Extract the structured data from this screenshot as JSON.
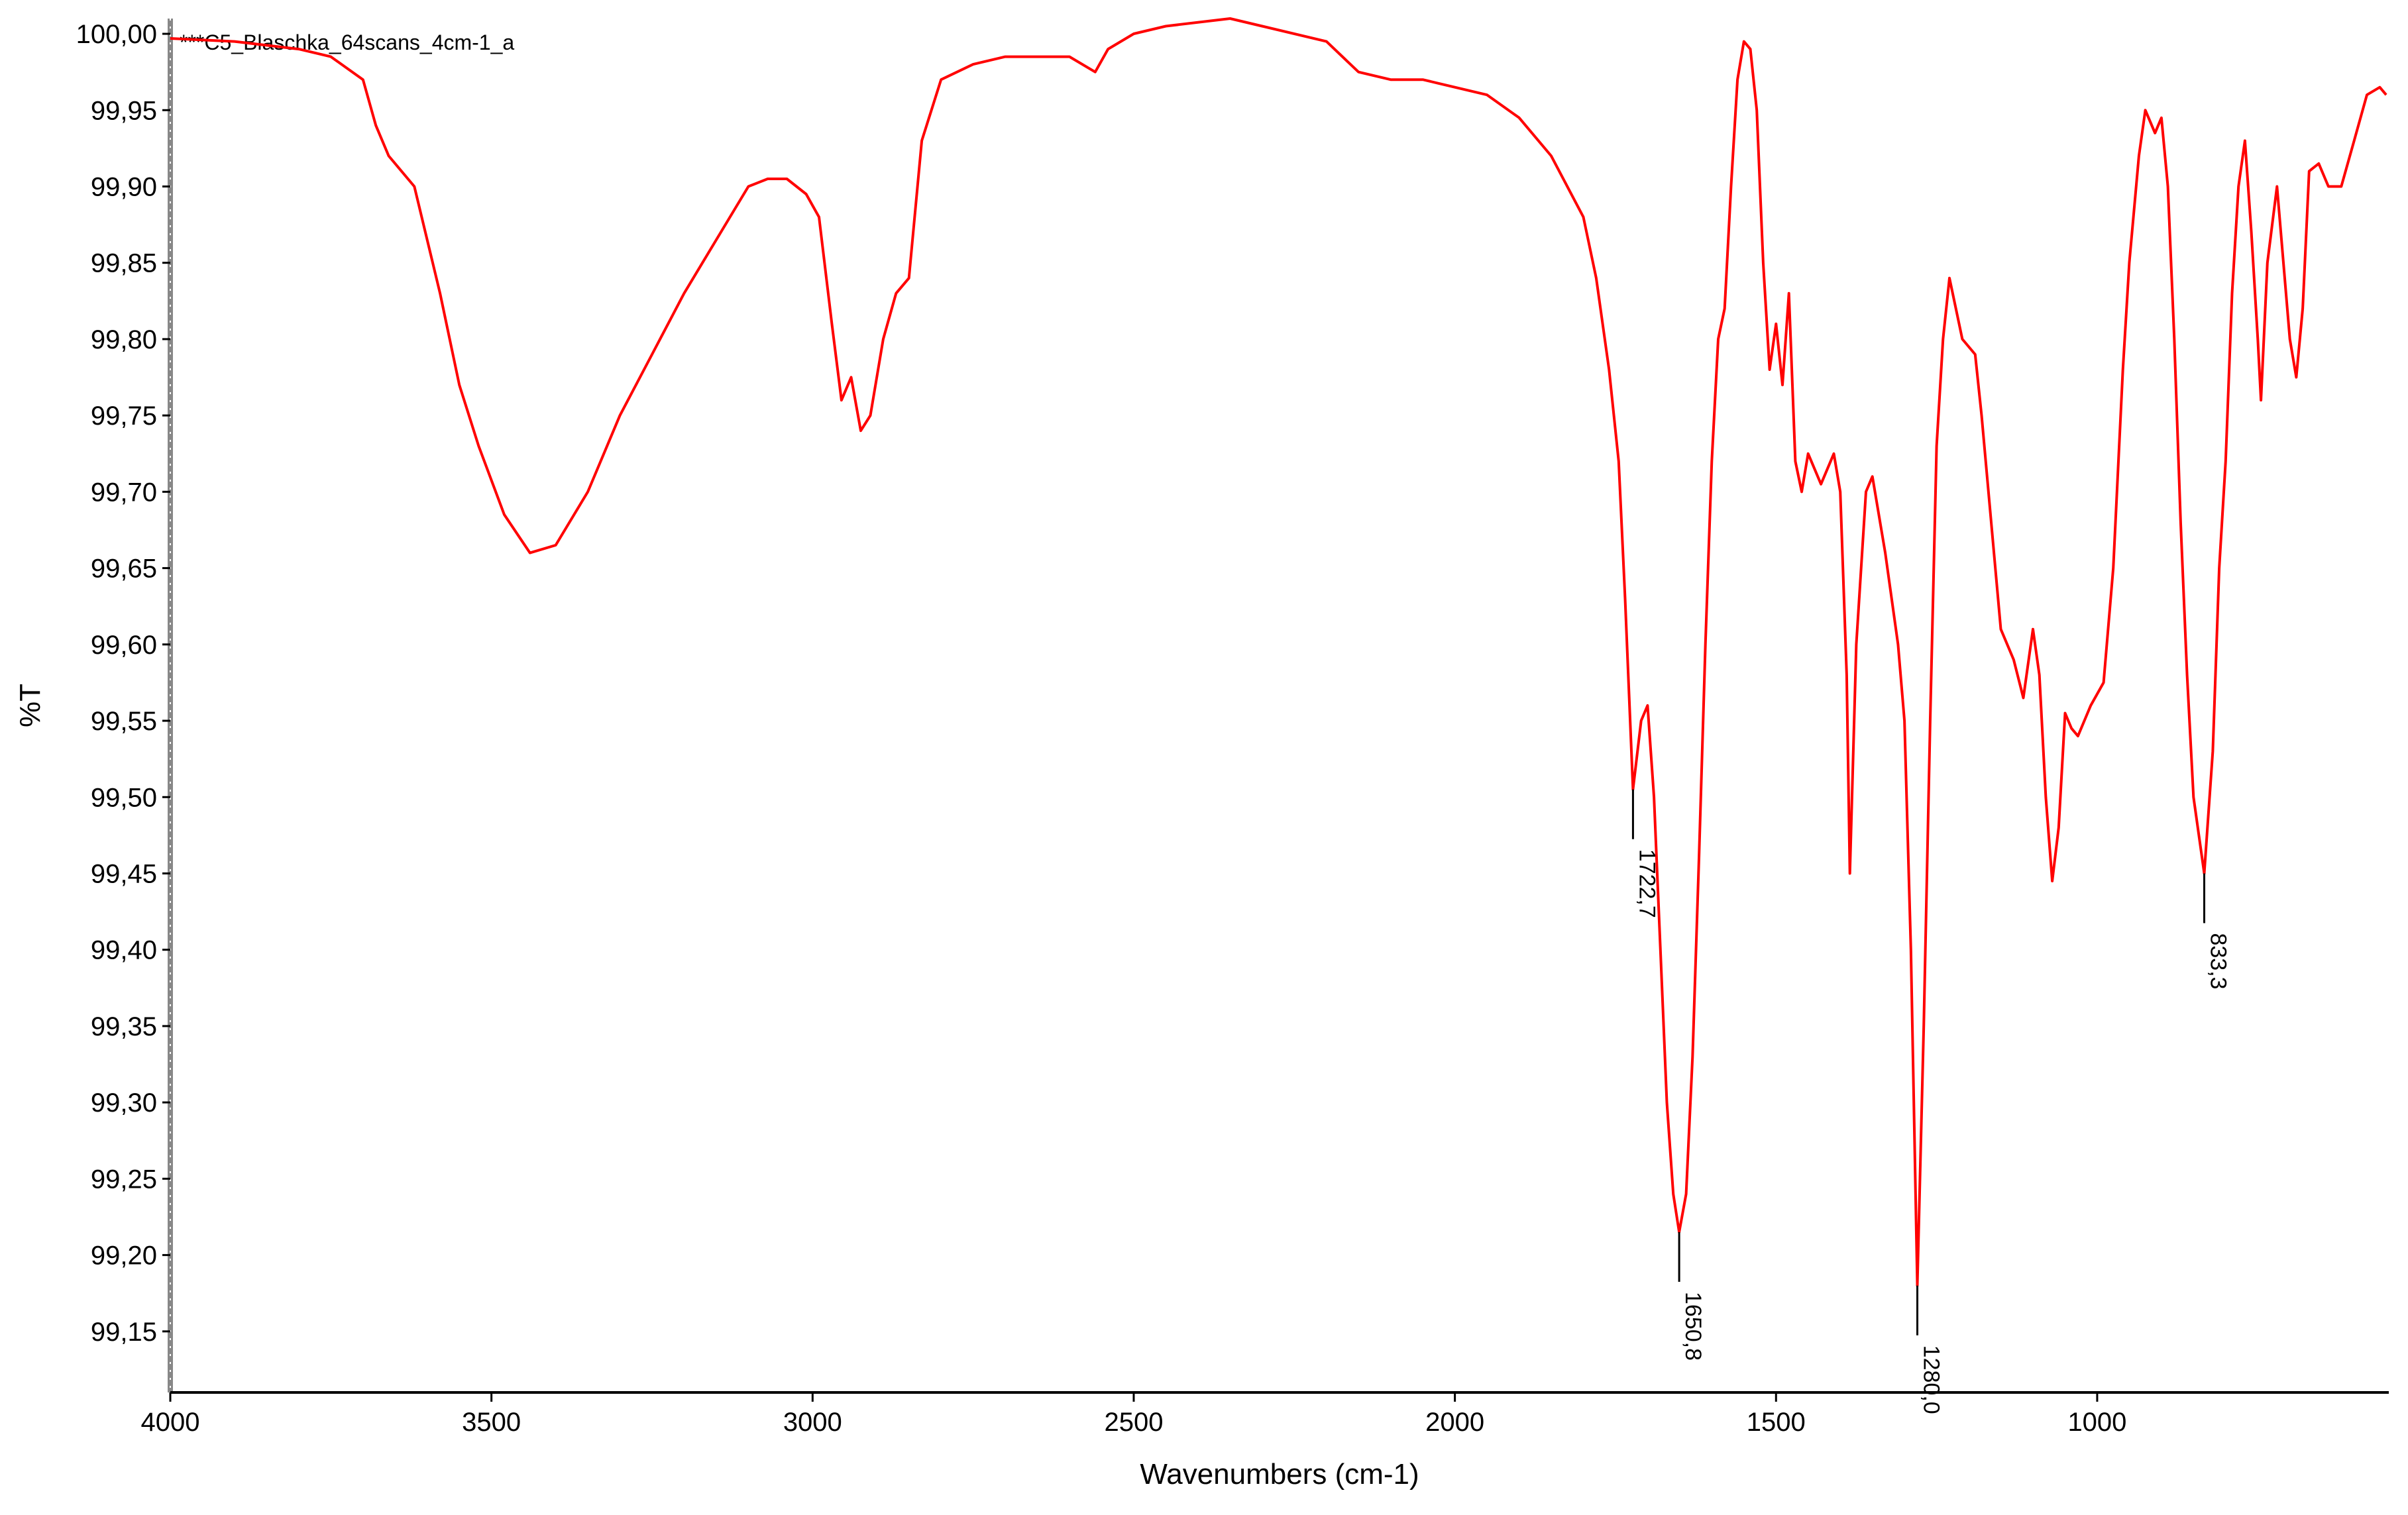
{
  "chart_data": {
    "type": "line",
    "series_label": "***C5_Blaschka_64scans_4cm-1_a",
    "x_label": "Wavenumbers (cm-1)",
    "y_label": "%T",
    "xlim": [
      4000,
      546
    ],
    "ylim": [
      99.11,
      100.01
    ],
    "xticks": [
      4000,
      3500,
      3000,
      2500,
      2000,
      1500,
      1000
    ],
    "yticks": [
      {
        "value": 100.0,
        "label": "100,00"
      },
      {
        "value": 99.95,
        "label": "99,95"
      },
      {
        "value": 99.9,
        "label": "99,90"
      },
      {
        "value": 99.85,
        "label": "99,85"
      },
      {
        "value": 99.8,
        "label": "99,80"
      },
      {
        "value": 99.75,
        "label": "99,75"
      },
      {
        "value": 99.7,
        "label": "99,70"
      },
      {
        "value": 99.65,
        "label": "99,65"
      },
      {
        "value": 99.6,
        "label": "99,60"
      },
      {
        "value": 99.55,
        "label": "99,55"
      },
      {
        "value": 99.5,
        "label": "99,50"
      },
      {
        "value": 99.45,
        "label": "99,45"
      },
      {
        "value": 99.4,
        "label": "99,40"
      },
      {
        "value": 99.35,
        "label": "99,35"
      },
      {
        "value": 99.3,
        "label": "99,30"
      },
      {
        "value": 99.25,
        "label": "99,25"
      },
      {
        "value": 99.2,
        "label": "99,20"
      },
      {
        "value": 99.15,
        "label": "99,15"
      }
    ],
    "color": "#ff0000",
    "x": [
      4000,
      3900,
      3800,
      3750,
      3700,
      3680,
      3660,
      3620,
      3580,
      3550,
      3520,
      3480,
      3440,
      3400,
      3350,
      3300,
      3250,
      3200,
      3150,
      3100,
      3070,
      3040,
      3010,
      2990,
      2970,
      2955,
      2940,
      2925,
      2910,
      2890,
      2870,
      2850,
      2830,
      2800,
      2750,
      2700,
      2600,
      2560,
      2540,
      2500,
      2450,
      2350,
      2300,
      2200,
      2150,
      2100,
      2050,
      2000,
      1950,
      1900,
      1850,
      1800,
      1780,
      1760,
      1745,
      1735,
      1722.7,
      1710,
      1700,
      1690,
      1680,
      1670,
      1660,
      1650.8,
      1640,
      1630,
      1620,
      1610,
      1600,
      1590,
      1580,
      1570,
      1560,
      1550,
      1540,
      1530,
      1520,
      1510,
      1500,
      1490,
      1480,
      1470,
      1460,
      1450,
      1430,
      1410,
      1400,
      1390,
      1385,
      1375,
      1360,
      1350,
      1330,
      1310,
      1300,
      1290,
      1280,
      1270,
      1260,
      1250,
      1240,
      1230,
      1220,
      1210,
      1190,
      1180,
      1165,
      1150,
      1130,
      1115,
      1100,
      1090,
      1080,
      1070,
      1060,
      1050,
      1040,
      1030,
      1010,
      990,
      975,
      960,
      950,
      935,
      925,
      910,
      900,
      890,
      880,
      870,
      860,
      850,
      833.3,
      820,
      810,
      800,
      790,
      780,
      770,
      760,
      750,
      745,
      735,
      720,
      710,
      700,
      690,
      680,
      670,
      655,
      640,
      620,
      600,
      580,
      560,
      550
    ],
    "values": [
      99.997,
      99.995,
      99.99,
      99.985,
      99.97,
      99.94,
      99.92,
      99.9,
      99.83,
      99.77,
      99.73,
      99.685,
      99.66,
      99.665,
      99.7,
      99.75,
      99.79,
      99.83,
      99.865,
      99.9,
      99.905,
      99.905,
      99.895,
      99.88,
      99.81,
      99.76,
      99.775,
      99.74,
      99.75,
      99.8,
      99.83,
      99.84,
      99.93,
      99.97,
      99.98,
      99.985,
      99.985,
      99.975,
      99.99,
      100.0,
      100.005,
      100.01,
      100.005,
      99.995,
      99.975,
      99.97,
      99.97,
      99.965,
      99.96,
      99.945,
      99.92,
      99.88,
      99.84,
      99.78,
      99.72,
      99.63,
      99.505,
      99.55,
      99.56,
      99.5,
      99.4,
      99.3,
      99.24,
      99.215,
      99.24,
      99.33,
      99.46,
      99.6,
      99.72,
      99.8,
      99.82,
      99.9,
      99.97,
      99.995,
      99.99,
      99.95,
      99.85,
      99.78,
      99.81,
      99.77,
      99.83,
      99.72,
      99.7,
      99.725,
      99.705,
      99.725,
      99.7,
      99.58,
      99.45,
      99.6,
      99.7,
      99.71,
      99.66,
      99.6,
      99.55,
      99.4,
      99.18,
      99.35,
      99.55,
      99.73,
      99.8,
      99.84,
      99.82,
      99.8,
      99.79,
      99.75,
      99.68,
      99.61,
      99.59,
      99.565,
      99.61,
      99.58,
      99.5,
      99.445,
      99.48,
      99.555,
      99.545,
      99.54,
      99.56,
      99.575,
      99.65,
      99.78,
      99.85,
      99.92,
      99.95,
      99.935,
      99.945,
      99.9,
      99.8,
      99.68,
      99.58,
      99.5,
      99.45,
      99.53,
      99.65,
      99.72,
      99.83,
      99.9,
      99.93,
      99.87,
      99.8,
      99.76,
      99.85,
      99.9,
      99.85,
      99.8,
      99.775,
      99.82,
      99.91,
      99.915,
      99.9,
      99.9,
      99.93,
      99.96,
      99.965,
      99.96
    ],
    "peaks": [
      {
        "x": 1722.7,
        "y": 99.505,
        "label": "1722,7"
      },
      {
        "x": 1650.8,
        "y": 99.215,
        "label": "1650,8"
      },
      {
        "x": 1280.0,
        "y": 99.18,
        "label": "1280,0"
      },
      {
        "x": 833.3,
        "y": 99.45,
        "label": "833,3"
      }
    ]
  }
}
